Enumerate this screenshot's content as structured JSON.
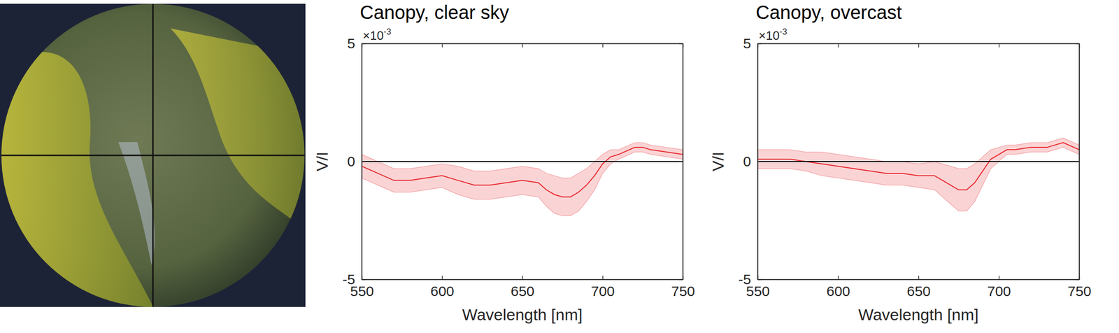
{
  "chart_data": [
    {
      "type": "line",
      "title": "Canopy, clear sky",
      "xlabel": "Wavelength [nm]",
      "ylabel": "V/I",
      "y_multiplier_base": "×10",
      "y_multiplier_exponent": "-3",
      "xlim": [
        550,
        750
      ],
      "xticks": [
        550,
        600,
        650,
        700,
        750
      ],
      "ylim": [
        -5,
        5
      ],
      "yticks": [
        -5,
        0,
        5
      ],
      "reference_line": 0,
      "x": [
        550,
        560,
        570,
        580,
        590,
        600,
        610,
        620,
        630,
        640,
        650,
        660,
        665,
        670,
        675,
        680,
        685,
        690,
        695,
        700,
        705,
        710,
        720,
        725,
        730,
        740,
        750
      ],
      "series": [
        {
          "color": "#e8262c",
          "values": [
            -0.2,
            -0.5,
            -0.8,
            -0.8,
            -0.7,
            -0.6,
            -0.8,
            -1.0,
            -1.0,
            -0.9,
            -0.8,
            -0.9,
            -1.2,
            -1.4,
            -1.5,
            -1.5,
            -1.3,
            -1.0,
            -0.6,
            -0.1,
            0.2,
            0.3,
            0.6,
            0.6,
            0.5,
            0.4,
            0.3
          ],
          "error": [
            0.5,
            0.5,
            0.5,
            0.5,
            0.5,
            0.5,
            0.6,
            0.6,
            0.6,
            0.6,
            0.6,
            0.6,
            0.7,
            0.8,
            0.8,
            0.8,
            0.8,
            0.7,
            0.6,
            0.4,
            0.3,
            0.2,
            0.2,
            0.2,
            0.2,
            0.2,
            0.2
          ]
        }
      ]
    },
    {
      "type": "line",
      "title": "Canopy, overcast",
      "xlabel": "Wavelength [nm]",
      "ylabel": "V/I",
      "y_multiplier_base": "×10",
      "y_multiplier_exponent": "-3",
      "xlim": [
        550,
        750
      ],
      "xticks": [
        550,
        600,
        650,
        700,
        750
      ],
      "ylim": [
        -5,
        5
      ],
      "yticks": [
        -5,
        0,
        5
      ],
      "reference_line": 0,
      "x": [
        550,
        560,
        570,
        580,
        590,
        600,
        610,
        620,
        630,
        640,
        650,
        660,
        665,
        670,
        675,
        680,
        685,
        690,
        695,
        700,
        705,
        710,
        720,
        725,
        730,
        740,
        750
      ],
      "series": [
        {
          "color": "#e8262c",
          "values": [
            0.1,
            0.1,
            0.1,
            0.0,
            -0.1,
            -0.2,
            -0.3,
            -0.4,
            -0.5,
            -0.5,
            -0.6,
            -0.6,
            -0.8,
            -1.0,
            -1.2,
            -1.2,
            -0.9,
            -0.4,
            0.1,
            0.3,
            0.5,
            0.5,
            0.6,
            0.6,
            0.6,
            0.8,
            0.5
          ],
          "error": [
            0.4,
            0.4,
            0.4,
            0.4,
            0.5,
            0.5,
            0.5,
            0.5,
            0.5,
            0.5,
            0.5,
            0.6,
            0.7,
            0.8,
            0.9,
            0.9,
            0.8,
            0.6,
            0.4,
            0.3,
            0.2,
            0.2,
            0.2,
            0.2,
            0.2,
            0.2,
            0.2
          ]
        }
      ]
    }
  ]
}
